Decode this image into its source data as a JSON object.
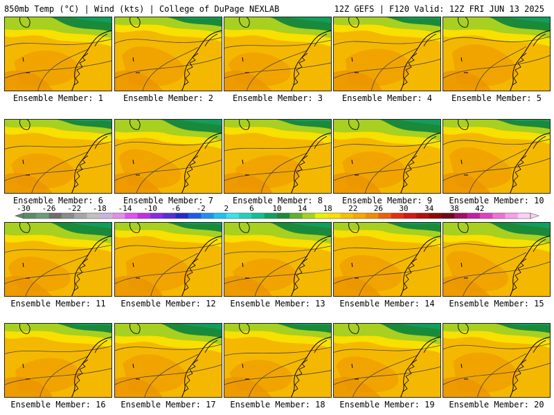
{
  "header": {
    "left": "850mb Temp (°C) | Wind (kts) | College of DuPage NEXLAB",
    "right": "12Z GEFS | F120 Valid: 12Z FRI JUN 13 2025"
  },
  "panels": [
    {
      "label": "Ensemble Member: 1",
      "member": 1
    },
    {
      "label": "Ensemble Member: 2",
      "member": 2
    },
    {
      "label": "Ensemble Member: 3",
      "member": 3
    },
    {
      "label": "Ensemble Member: 4",
      "member": 4
    },
    {
      "label": "Ensemble Member: 5",
      "member": 5
    },
    {
      "label": "Ensemble Member: 6",
      "member": 6
    },
    {
      "label": "Ensemble Member: 7",
      "member": 7
    },
    {
      "label": "Ensemble Member: 8",
      "member": 8
    },
    {
      "label": "Ensemble Member: 9",
      "member": 9
    },
    {
      "label": "Ensemble Member: 10",
      "member": 10
    },
    {
      "label": "Ensemble Member: 11",
      "member": 11
    },
    {
      "label": "Ensemble Member: 12",
      "member": 12
    },
    {
      "label": "Ensemble Member: 13",
      "member": 13
    },
    {
      "label": "Ensemble Member: 14",
      "member": 14
    },
    {
      "label": "Ensemble Member: 15",
      "member": 15
    },
    {
      "label": "Ensemble Member: 16",
      "member": 16
    },
    {
      "label": "Ensemble Member: 17",
      "member": 17
    },
    {
      "label": "Ensemble Member: 18",
      "member": 18
    },
    {
      "label": "Ensemble Member: 19",
      "member": 19
    },
    {
      "label": "Ensemble Member: 20",
      "member": 20
    }
  ],
  "colorbar": {
    "labels": [
      "-30",
      "-26",
      "-22",
      "-18",
      "-14",
      "-10",
      "-6",
      "-2",
      "2",
      "6",
      "10",
      "14",
      "18",
      "22",
      "26",
      "30",
      "34",
      "38",
      "42"
    ],
    "colors": [
      "#5a8a6a",
      "#6d9a7b",
      "#6e6e6e",
      "#8a8a8a",
      "#a6a6a6",
      "#c0c0c0",
      "#c8b4dc",
      "#e090e8",
      "#e050f0",
      "#c030e0",
      "#8a2be2",
      "#5a2fd0",
      "#2828c8",
      "#1e5ae8",
      "#2090f0",
      "#20c0f0",
      "#40e0e8",
      "#20d0c0",
      "#10c090",
      "#10a060",
      "#1a8a3a",
      "#5fb030",
      "#a8d020",
      "#e8f000",
      "#f8e000",
      "#f5c000",
      "#f5a800",
      "#f08c00",
      "#e86010",
      "#e03010",
      "#d01818",
      "#b01010",
      "#8a0a0a",
      "#6a0a1a",
      "#a01060",
      "#c020a0",
      "#e040c0",
      "#f070d8",
      "#f8a0e8",
      "#fcd0f4"
    ]
  }
}
